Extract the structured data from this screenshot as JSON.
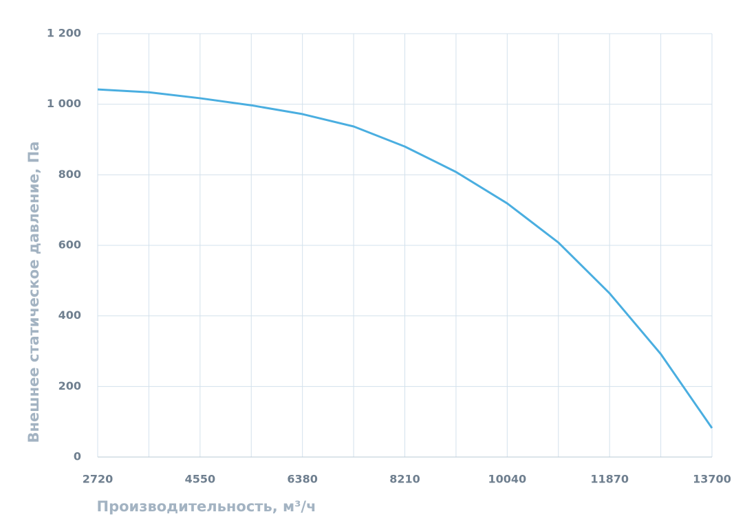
{
  "chart_data": {
    "type": "line",
    "x_label": "Производительность, м³/ч",
    "y_label": "Внешнее статическое давление, Па",
    "x": [
      2720,
      3635,
      4550,
      5465,
      6380,
      7295,
      8210,
      9125,
      10040,
      10955,
      11870,
      12785,
      13700
    ],
    "values": [
      1042,
      1034,
      1017,
      997,
      972,
      937,
      880,
      808,
      719,
      608,
      464,
      292,
      82
    ],
    "color": "#4aaee0",
    "xlim": [
      2720,
      13700
    ],
    "xticks": [
      2720,
      4550,
      6380,
      8210,
      10040,
      11870,
      13700
    ],
    "xminor_ticks": [
      3635,
      5465,
      7295,
      9125,
      10955,
      12785
    ],
    "ylim": [
      0,
      1200
    ],
    "yticks": [
      0,
      200,
      400,
      600,
      800,
      {
        "value": 1000,
        "label": "1 000"
      },
      {
        "value": 1200,
        "label": "1 200"
      }
    ],
    "grid": true
  }
}
